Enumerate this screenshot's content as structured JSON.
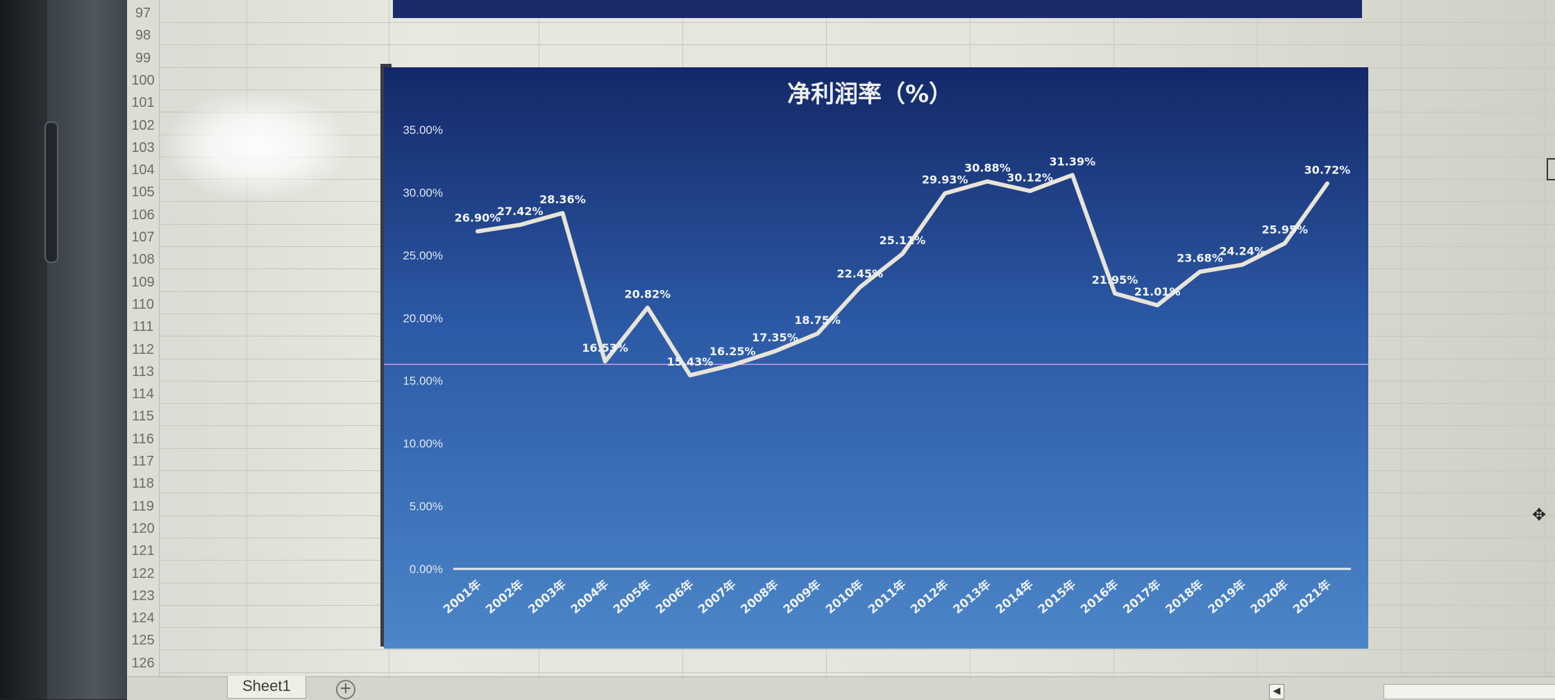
{
  "sheet": {
    "row_numbers": [
      "97",
      "98",
      "99",
      "100",
      "101",
      "102",
      "103",
      "104",
      "105",
      "106",
      "107",
      "108",
      "109",
      "110",
      "111",
      "112",
      "113",
      "114",
      "115",
      "116",
      "117",
      "118",
      "119",
      "120",
      "121",
      "122",
      "123",
      "124",
      "125",
      "126"
    ],
    "tab_name": "Sheet1",
    "add_sheet_label": "+"
  },
  "chart_data": {
    "type": "line",
    "title": "净利润率（%）",
    "categories": [
      "2001年",
      "2002年",
      "2003年",
      "2004年",
      "2005年",
      "2006年",
      "2007年",
      "2008年",
      "2009年",
      "2010年",
      "2011年",
      "2012年",
      "2013年",
      "2014年",
      "2015年",
      "2016年",
      "2017年",
      "2018年",
      "2019年",
      "2020年",
      "2021年"
    ],
    "values": [
      26.9,
      27.42,
      28.36,
      16.53,
      20.82,
      15.43,
      16.25,
      17.35,
      18.75,
      22.45,
      25.11,
      29.93,
      30.88,
      30.12,
      31.39,
      21.95,
      21.01,
      23.68,
      24.24,
      25.95,
      30.72
    ],
    "data_labels": [
      "26.90%",
      "27.42%",
      "28.36%",
      "16.53%",
      "20.82%",
      "15.43%",
      "16.25%",
      "17.35%",
      "18.75%",
      "22.45%",
      "25.11%",
      "29.93%",
      "30.88%",
      "30.12%",
      "31.39%",
      "21.95%",
      "21.01%",
      "23.68%",
      "24.24%",
      "25.95%",
      "30.72%"
    ],
    "y_ticks": [
      "0.00%",
      "5.00%",
      "10.00%",
      "15.00%",
      "20.00%",
      "25.00%",
      "30.00%",
      "35.00%"
    ],
    "ylim": [
      0,
      35
    ],
    "reference_line": 16.3,
    "grid": false,
    "colors": {
      "line": "#e8e4d8",
      "reference": "#e0a8e8",
      "bg_top": "#152a6b",
      "bg_bottom": "#4a82c4",
      "text": "#f0f2f6"
    }
  }
}
